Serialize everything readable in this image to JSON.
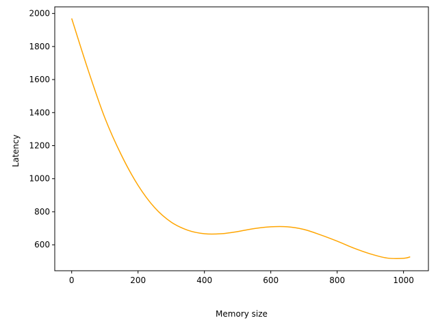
{
  "chart_data": {
    "type": "line",
    "title": "",
    "xlabel": "Memory size",
    "ylabel": "Latency",
    "xlim": [
      -51,
      1075
    ],
    "ylim": [
      443,
      2040
    ],
    "grid": false,
    "xticks": [
      0,
      200,
      400,
      600,
      800,
      1000
    ],
    "yticks": [
      600,
      800,
      1000,
      1200,
      1400,
      1600,
      1800,
      2000
    ],
    "series": [
      {
        "color": "#ffa500",
        "x": [
          0,
          50,
          100,
          150,
          200,
          250,
          300,
          350,
          400,
          450,
          500,
          550,
          600,
          650,
          700,
          750,
          800,
          850,
          900,
          950,
          1000,
          1020
        ],
        "y": [
          1970,
          1655,
          1368,
          1142,
          960,
          825,
          737,
          688,
          667,
          667,
          680,
          698,
          709,
          709,
          693,
          660,
          622,
          580,
          545,
          520,
          518,
          527
        ]
      }
    ]
  }
}
